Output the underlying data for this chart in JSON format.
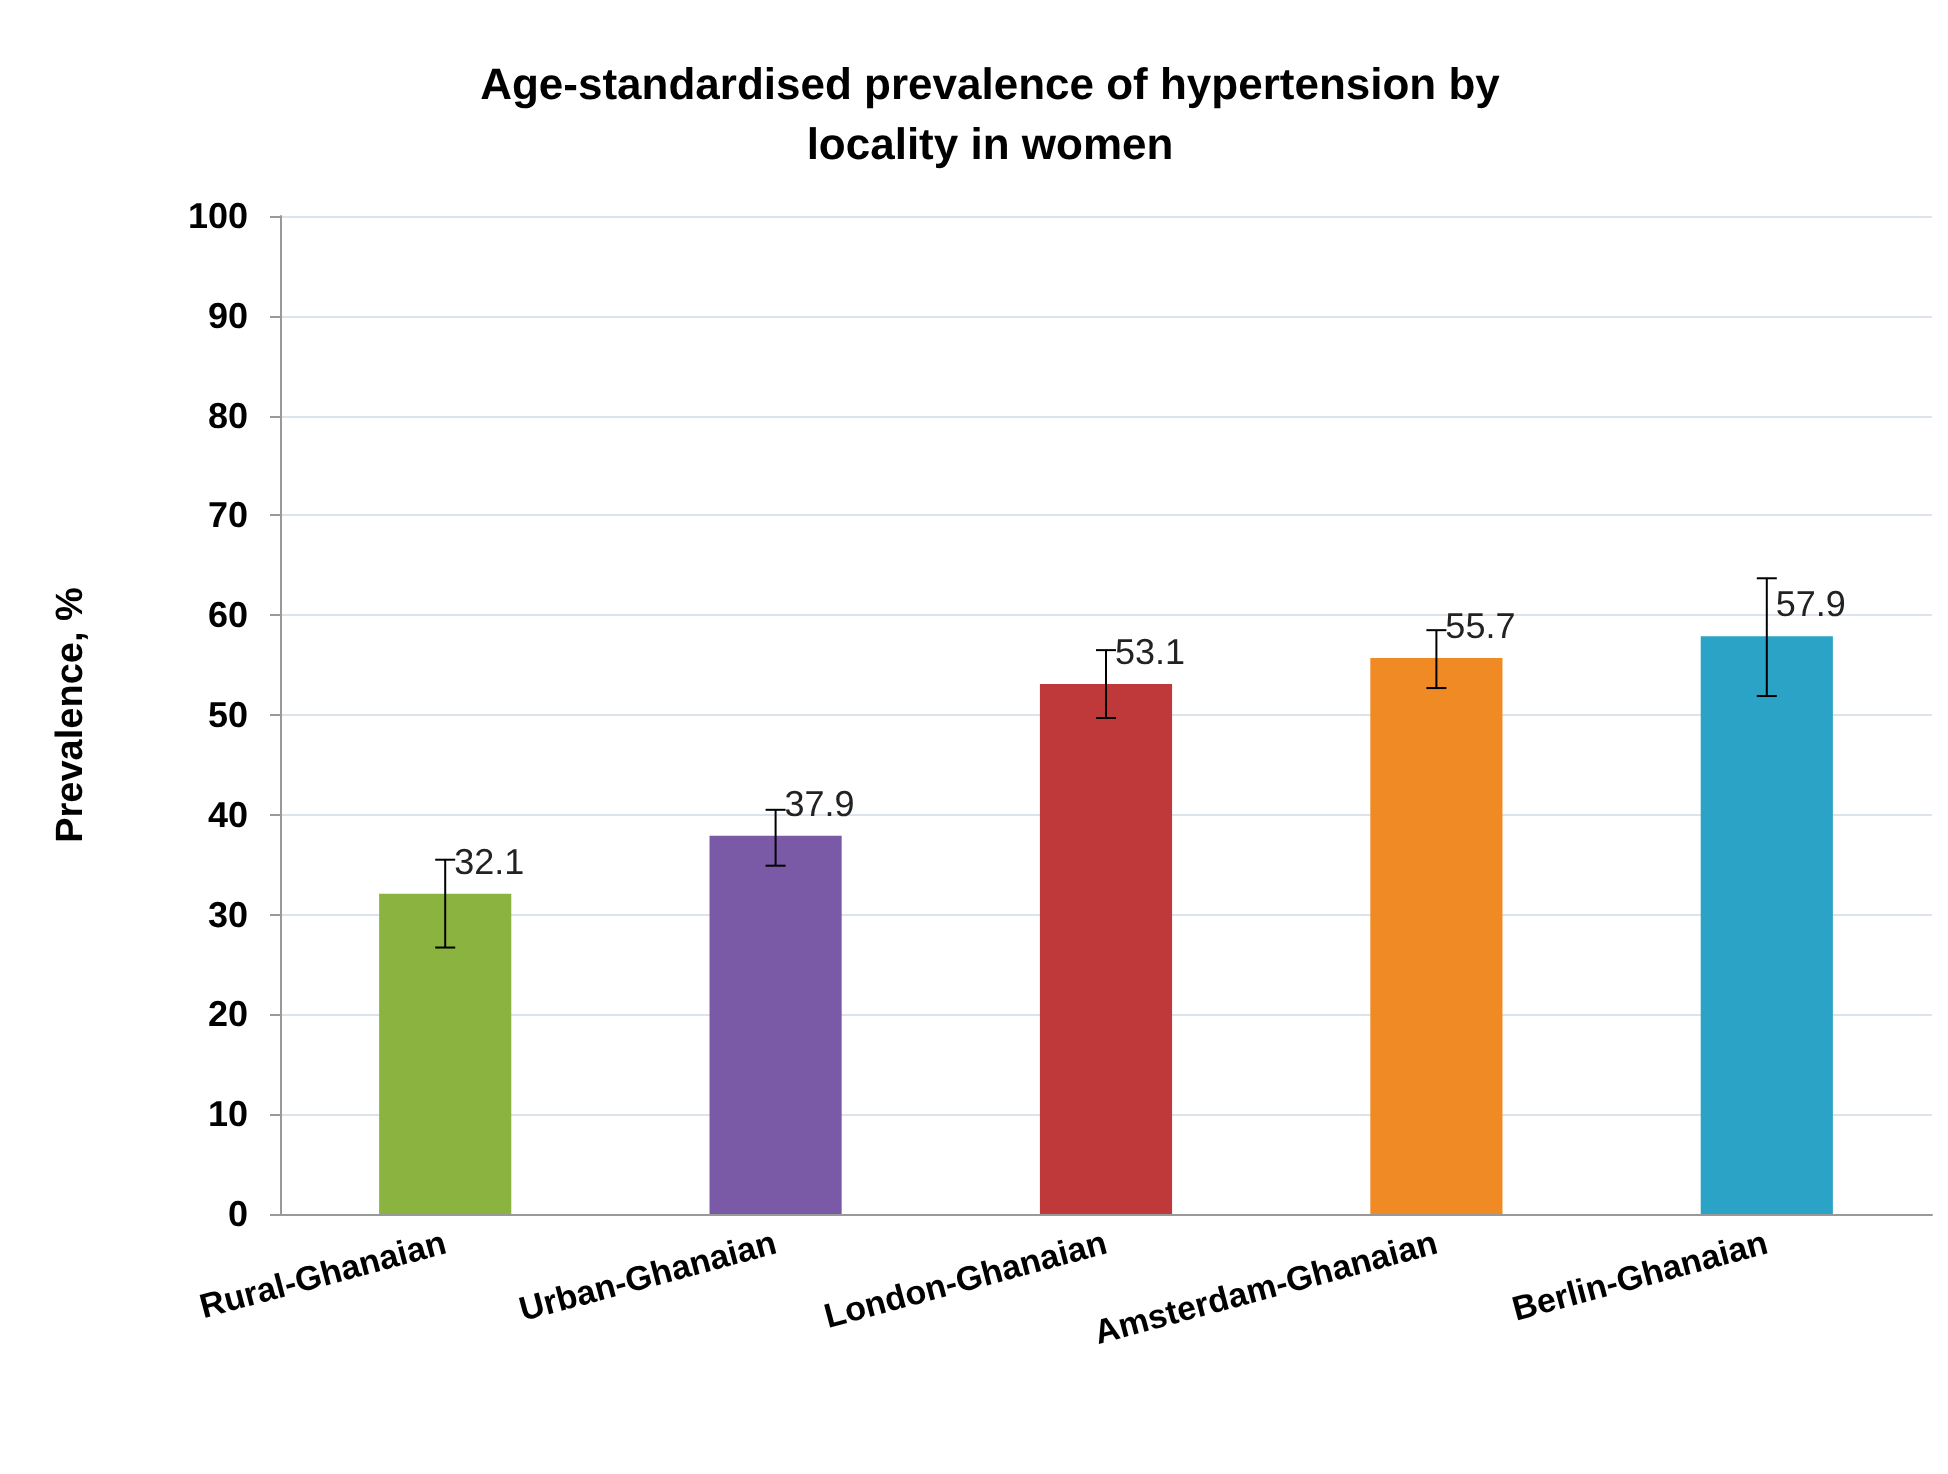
{
  "chart_data": {
    "type": "bar",
    "title": "Age-standardised prevalence of hypertension by\nlocality in women",
    "ylabel": "Prevalence, %",
    "categories": [
      "Rural-Ghanaian",
      "Urban-Ghanaian",
      "London-Ghanaian",
      "Amsterdam-Ghanaian",
      "Berlin-Ghanaian"
    ],
    "values": [
      32.1,
      37.9,
      53.1,
      55.7,
      57.9
    ],
    "colors": [
      "#8ab43f",
      "#7a5aa6",
      "#c0393a",
      "#f08a24",
      "#2aa3c6"
    ],
    "errors": [
      [
        26.7,
        35.5
      ],
      [
        34.9,
        40.5
      ],
      [
        49.7,
        56.5
      ],
      [
        52.7,
        58.5
      ],
      [
        51.9,
        63.7
      ]
    ],
    "ylim": [
      0,
      100
    ],
    "yticks": [
      0,
      10,
      20,
      30,
      40,
      50,
      60,
      70,
      80,
      90,
      100
    ],
    "grid": "y",
    "data_labels": true
  }
}
